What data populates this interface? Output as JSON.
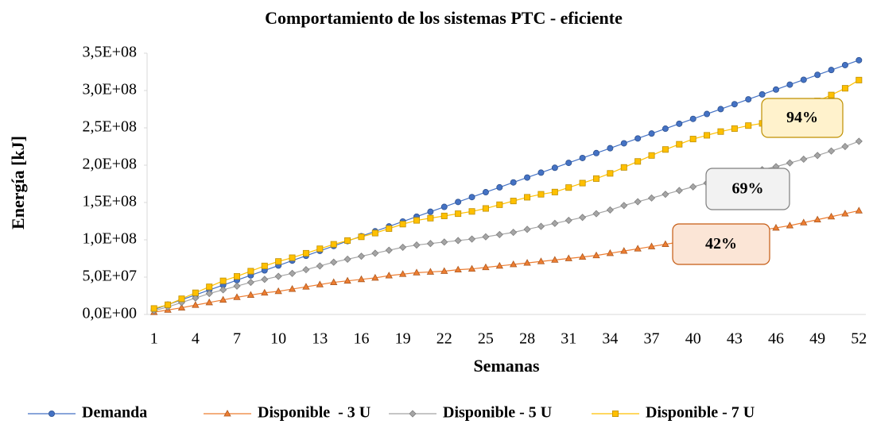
{
  "chart_data": {
    "type": "line",
    "title": "Comportamiento de los sistemas PTC - eficiente",
    "x_label": "Semanas",
    "y_label": "Energía [kJ]",
    "categories": [
      1,
      null,
      null,
      4,
      null,
      null,
      7,
      null,
      null,
      10,
      null,
      null,
      13,
      null,
      null,
      16,
      null,
      null,
      19,
      null,
      null,
      22,
      null,
      null,
      25,
      null,
      null,
      28,
      null,
      null,
      31,
      null,
      null,
      34,
      null,
      null,
      37,
      null,
      null,
      40,
      null,
      null,
      43,
      null,
      null,
      46,
      null,
      null,
      49,
      null,
      null,
      52
    ],
    "ylim": [
      0,
      350000000
    ],
    "yticks": [
      {
        "value": 0,
        "label": "0,0E+00"
      },
      {
        "value": 50000000,
        "label": "5,0E+07"
      },
      {
        "value": 100000000,
        "label": "1,0E+08"
      },
      {
        "value": 150000000,
        "label": "1,5E+08"
      },
      {
        "value": 200000000,
        "label": "2,0E+08"
      },
      {
        "value": 250000000,
        "label": "2,5E+08"
      },
      {
        "value": 300000000,
        "label": "3,0E+08"
      },
      {
        "value": 350000000,
        "label": "3,5E+08"
      }
    ],
    "grid": false,
    "legend": "bottom",
    "series": [
      {
        "name": "Demanda",
        "color": "#4472c4",
        "marker": "circle",
        "values": [
          6600000.0,
          13100000.0,
          19700000.0,
          26200000.0,
          32800000.0,
          39300000.0,
          45900000.0,
          52400000.0,
          59000000.0,
          65500000.0,
          72100000.0,
          78600000.0,
          85200000.0,
          91700000.0,
          98300000.0,
          104800000.0,
          111400000.0,
          117900000.0,
          124500000.0,
          131000000.0,
          137600000.0,
          144100000.0,
          150700000.0,
          157200000.0,
          163800000.0,
          170300000.0,
          176900000.0,
          183400000.0,
          190000000.0,
          196500000.0,
          203100000.0,
          209600000.0,
          216200000.0,
          222700000.0,
          229300000.0,
          235800000.0,
          242400000.0,
          248900000.0,
          255500000.0,
          262000000.0,
          268600000.0,
          275100000.0,
          281700000.0,
          288200000.0,
          294800000.0,
          301300000.0,
          307900000.0,
          314400000.0,
          321000000.0,
          327500000.0,
          334100000.0,
          340600000.0
        ]
      },
      {
        "name": "Disponible  - 3 U",
        "color": "#ed7d31",
        "marker": "triangle",
        "values": [
          3000000.0,
          6000000.0,
          9000000.0,
          12500000.0,
          16000000.0,
          19500000.0,
          23000000.0,
          26000000.0,
          29000000.0,
          31000000.0,
          34000000.0,
          37000000.0,
          40000000.0,
          43000000.0,
          45000000.0,
          47000000.0,
          49000000.0,
          52000000.0,
          54000000.0,
          56000000.0,
          57000000.0,
          58000000.0,
          60000000.0,
          61000000.0,
          63000000.0,
          65000000.0,
          67000000.0,
          69000000.0,
          71000000.0,
          73000000.0,
          75000000.0,
          77000000.0,
          79000000.0,
          82000000.0,
          85000000.0,
          88000000.0,
          91000000.0,
          94000000.0,
          97000000.0,
          100000000.0,
          103000000.0,
          106000000.0,
          109000000.0,
          111000000.0,
          113000000.0,
          116000000.0,
          119000000.0,
          123000000.0,
          127000000.0,
          131000000.0,
          135000000.0,
          139000000.0
        ]
      },
      {
        "name": "Disponible - 5 U",
        "color": "#a5a5a5",
        "marker": "diamond",
        "values": [
          5000000.0,
          10000000.0,
          16000000.0,
          22000000.0,
          28000000.0,
          33000000.0,
          38000000.0,
          43000000.0,
          47000000.0,
          51000000.0,
          55000000.0,
          60000000.0,
          65000000.0,
          70000000.0,
          74000000.0,
          78000000.0,
          82000000.0,
          86000000.0,
          90000000.0,
          93000000.0,
          95000000.0,
          97000000.0,
          99000000.0,
          101000000.0,
          104000000.0,
          107000000.0,
          110000000.0,
          114000000.0,
          118000000.0,
          122000000.0,
          126000000.0,
          130000000.0,
          135000000.0,
          140000000.0,
          146000000.0,
          151000000.0,
          156000000.0,
          161000000.0,
          166000000.0,
          171000000.0,
          176000000.0,
          181000000.0,
          186000000.0,
          190000000.0,
          194000000.0,
          198000000.0,
          203000000.0,
          208000000.0,
          213000000.0,
          219000000.0,
          225000000.0,
          232000000.0
        ]
      },
      {
        "name": "Disponible - 7 U",
        "color": "#ffc000",
        "marker": "square",
        "values": [
          8000000.0,
          13000000.0,
          21000000.0,
          29000000.0,
          37000000.0,
          45000000.0,
          51000000.0,
          58000000.0,
          65000000.0,
          71000000.0,
          76000000.0,
          82000000.0,
          88000000.0,
          94000000.0,
          99000000.0,
          104000000.0,
          109000000.0,
          115000000.0,
          121000000.0,
          126000000.0,
          129000000.0,
          132000000.0,
          135000000.0,
          138000000.0,
          142000000.0,
          147000000.0,
          152000000.0,
          157000000.0,
          161000000.0,
          164000000.0,
          170000000.0,
          176000000.0,
          182000000.0,
          189000000.0,
          197000000.0,
          205000000.0,
          213000000.0,
          221000000.0,
          228000000.0,
          235000000.0,
          240000000.0,
          245000000.0,
          249000000.0,
          253000000.0,
          256000000.0,
          262000000.0,
          270000000.0,
          278000000.0,
          286000000.0,
          294000000.0,
          303000000.0,
          314000000.0
        ]
      }
    ],
    "annotations": [
      {
        "text": "94%"
      },
      {
        "text": "69%"
      },
      {
        "text": "42%"
      }
    ]
  }
}
